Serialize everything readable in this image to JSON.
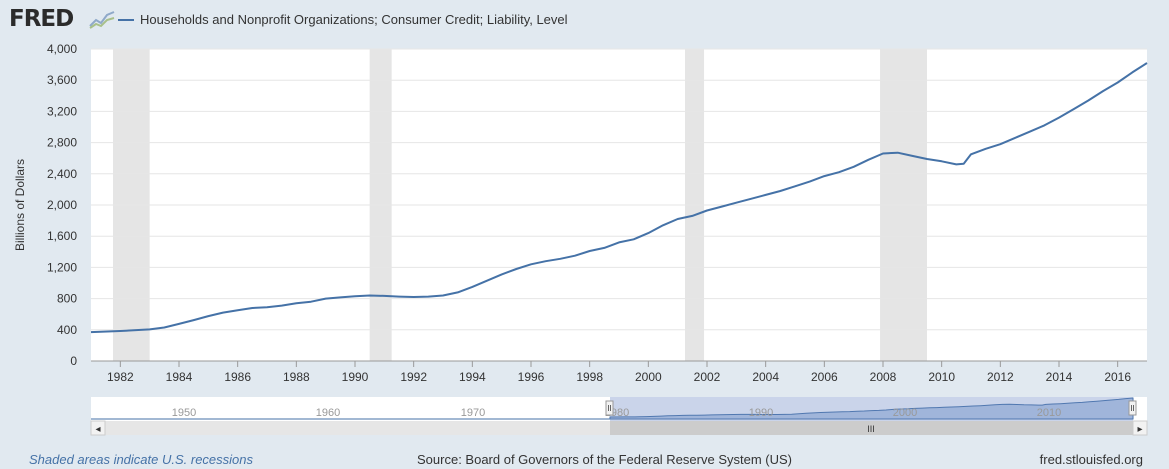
{
  "header": {
    "logo_text": "FRED",
    "legend_label": "Households and Nonprofit Organizations; Consumer Credit; Liability, Level"
  },
  "colors": {
    "line": "#4572a7",
    "recession": "#e5e5e5",
    "background": "#e1e9f0",
    "plot": "#ffffff"
  },
  "chart_data": {
    "type": "line",
    "ylabel": "Billions of Dollars",
    "xlim": [
      1981.0,
      2017.0
    ],
    "ylim": [
      0,
      4000
    ],
    "y_ticks": [
      0,
      400,
      800,
      1200,
      1600,
      2000,
      2400,
      2800,
      3200,
      3600,
      4000
    ],
    "y_tick_labels": [
      "0",
      "400",
      "800",
      "1,200",
      "1,600",
      "2,000",
      "2,400",
      "2,800",
      "3,200",
      "3,600",
      "4,000"
    ],
    "x_ticks": [
      1982,
      1984,
      1986,
      1988,
      1990,
      1992,
      1994,
      1996,
      1998,
      2000,
      2002,
      2004,
      2006,
      2008,
      2010,
      2012,
      2014,
      2016
    ],
    "x_tick_labels": [
      "1982",
      "1984",
      "1986",
      "1988",
      "1990",
      "1992",
      "1994",
      "1996",
      "1998",
      "2000",
      "2002",
      "2004",
      "2006",
      "2008",
      "2010",
      "2012",
      "2014",
      "2016"
    ],
    "grid": "horizontal",
    "recessions": [
      [
        1981.75,
        1983.0
      ],
      [
        1990.5,
        1991.25
      ],
      [
        2001.25,
        2001.9
      ],
      [
        2007.9,
        2009.5
      ]
    ],
    "series": [
      {
        "name": "Households and Nonprofit Organizations; Consumer Credit; Liability, Level",
        "x": [
          1981.0,
          1982.0,
          1983.0,
          1983.5,
          1984.0,
          1984.5,
          1985.0,
          1985.5,
          1986.0,
          1986.5,
          1987.0,
          1987.5,
          1988.0,
          1988.5,
          1989.0,
          1989.5,
          1990.0,
          1990.5,
          1991.0,
          1991.5,
          1992.0,
          1992.5,
          1993.0,
          1993.5,
          1994.0,
          1994.5,
          1995.0,
          1995.5,
          1996.0,
          1996.5,
          1997.0,
          1997.5,
          1998.0,
          1998.5,
          1999.0,
          1999.5,
          2000.0,
          2000.5,
          2001.0,
          2001.5,
          2002.0,
          2002.5,
          2003.0,
          2003.5,
          2004.0,
          2004.5,
          2005.0,
          2005.5,
          2006.0,
          2006.5,
          2007.0,
          2007.5,
          2008.0,
          2008.5,
          2009.0,
          2009.5,
          2010.0,
          2010.5,
          2010.75,
          2011.0,
          2011.5,
          2012.0,
          2012.5,
          2013.0,
          2013.5,
          2014.0,
          2014.5,
          2015.0,
          2015.5,
          2016.0,
          2016.5,
          2017.0
        ],
        "values": [
          370,
          385,
          405,
          430,
          475,
          525,
          575,
          620,
          650,
          680,
          690,
          710,
          740,
          760,
          800,
          815,
          830,
          840,
          835,
          825,
          820,
          825,
          840,
          880,
          950,
          1030,
          1110,
          1180,
          1240,
          1280,
          1310,
          1350,
          1410,
          1450,
          1520,
          1560,
          1640,
          1740,
          1820,
          1860,
          1930,
          1980,
          2030,
          2080,
          2130,
          2180,
          2240,
          2300,
          2370,
          2420,
          2490,
          2580,
          2660,
          2670,
          2630,
          2590,
          2560,
          2520,
          2530,
          2650,
          2720,
          2780,
          2860,
          2940,
          3020,
          3120,
          3230,
          3340,
          3460,
          3570,
          3700,
          3820
        ]
      }
    ]
  },
  "navigator": {
    "tick_labels": [
      "1950",
      "1960",
      "1970",
      "1980",
      "1990",
      "2000",
      "2010"
    ],
    "scroll_left_symbol": "◂",
    "scroll_right_symbol": "▸",
    "grip_symbol": "III"
  },
  "footer": {
    "recession_note": "Shaded areas indicate U.S. recessions",
    "source": "Source: Board of Governors of the Federal Reserve System (US)",
    "site": "fred.stlouisfed.org"
  }
}
